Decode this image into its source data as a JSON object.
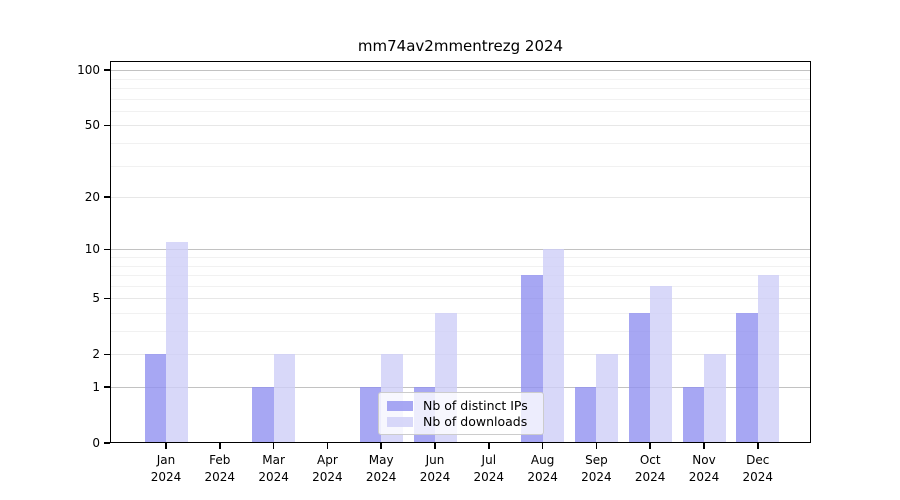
{
  "title": "mm74av2mmentrezg 2024",
  "axes": {
    "y_tick_labels": [
      "0",
      "1",
      "2",
      "5",
      "10",
      "20",
      "50",
      "100"
    ],
    "x_months": [
      "Jan",
      "Feb",
      "Mar",
      "Apr",
      "May",
      "Jun",
      "Jul",
      "Aug",
      "Sep",
      "Oct",
      "Nov",
      "Dec"
    ],
    "x_year": "2024"
  },
  "legend": {
    "items": [
      {
        "label": "Nb of distinct IPs",
        "color": "#9191f0"
      },
      {
        "label": "Nb of downloads",
        "color": "#cecef7"
      }
    ]
  },
  "chart_data": {
    "type": "bar",
    "title": "mm74av2mmentrezg 2024",
    "categories": [
      "Jan 2024",
      "Feb 2024",
      "Mar 2024",
      "Apr 2024",
      "May 2024",
      "Jun 2024",
      "Jul 2024",
      "Aug 2024",
      "Sep 2024",
      "Oct 2024",
      "Nov 2024",
      "Dec 2024"
    ],
    "series": [
      {
        "name": "Nb of distinct IPs",
        "color": "#9191f0",
        "values": [
          2,
          0,
          1,
          0,
          1,
          1,
          0,
          7,
          1,
          4,
          1,
          4
        ]
      },
      {
        "name": "Nb of downloads",
        "color": "#cecef7",
        "values": [
          11,
          0,
          2,
          0,
          2,
          4,
          0,
          10,
          2,
          6,
          2,
          7
        ]
      }
    ],
    "yscale": "log(1+y)",
    "yticks": [
      0,
      1,
      2,
      5,
      10,
      20,
      50,
      100
    ],
    "ylim": [
      0,
      110
    ],
    "grid": true,
    "legend_position": "lower center inside"
  }
}
